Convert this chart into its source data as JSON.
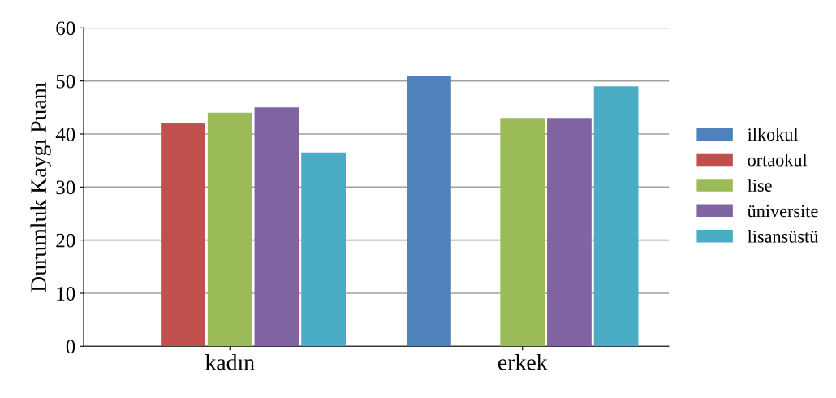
{
  "chart_data": {
    "type": "bar",
    "ylabel": "Durumluk Kaygı Puanı",
    "categories": [
      "kadın",
      "erkek"
    ],
    "series": [
      {
        "name": "ilkokul",
        "color": "#4f81bd",
        "values": [
          null,
          51
        ]
      },
      {
        "name": "ortaokul",
        "color": "#c0504d",
        "values": [
          42,
          null
        ]
      },
      {
        "name": "lise",
        "color": "#9bbb59",
        "values": [
          44,
          43
        ]
      },
      {
        "name": "üniversite",
        "color": "#8064a2",
        "values": [
          45,
          43
        ]
      },
      {
        "name": "lisansüstü",
        "color": "#4bacc6",
        "values": [
          36.5,
          49
        ]
      }
    ],
    "ylim": [
      0,
      60
    ],
    "yticks": [
      0,
      10,
      20,
      30,
      40,
      50,
      60
    ],
    "grid": "y",
    "legend": "right"
  }
}
